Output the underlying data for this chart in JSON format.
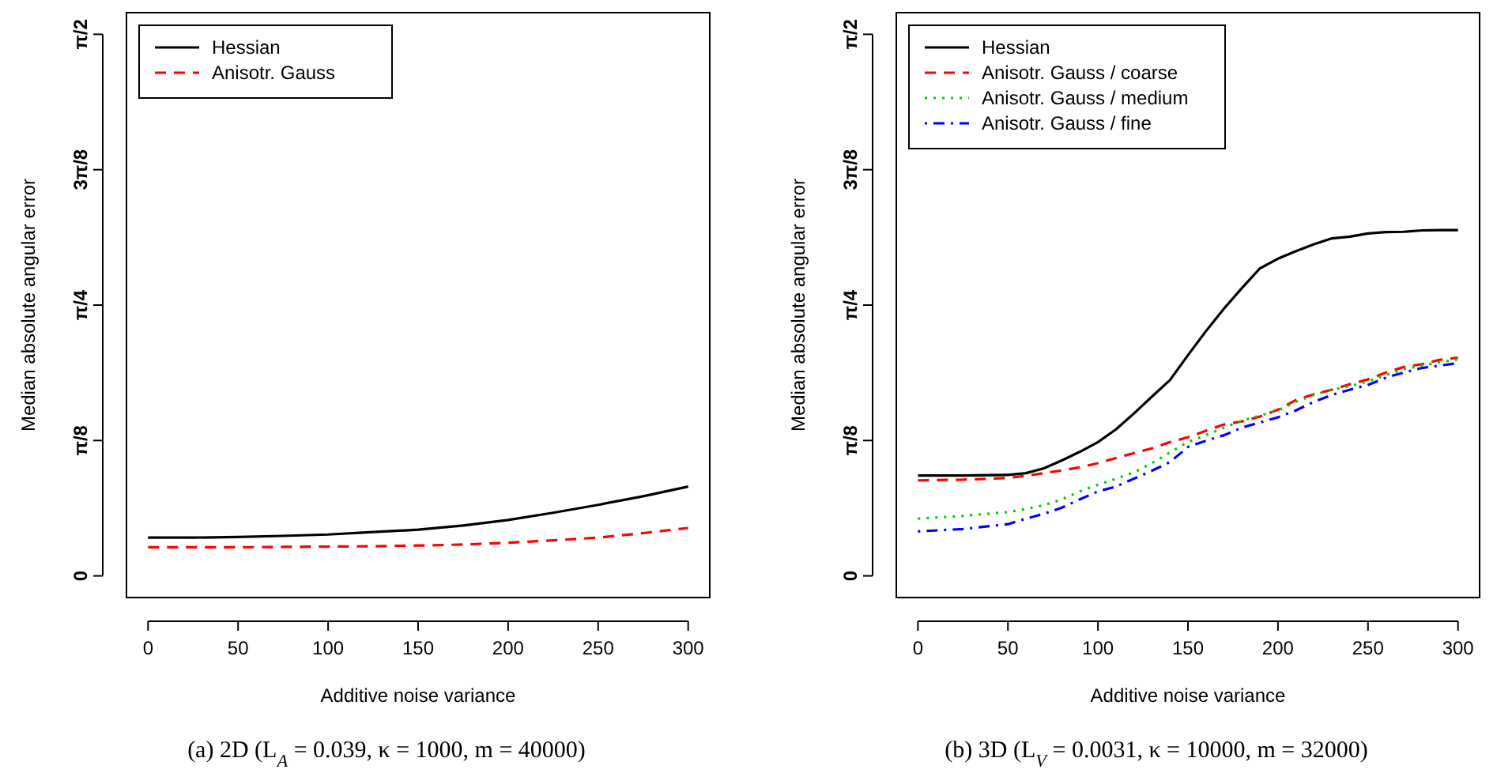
{
  "chart_data": [
    {
      "type": "line",
      "xlabel": "Additive noise variance",
      "ylabel": "Median absolute angular error",
      "annotations": [
        "(a) 2D (L$_{A}$ = 0.039, κ = 1000, m = 40000)"
      ],
      "x": [
        0,
        25,
        50,
        75,
        100,
        125,
        150,
        175,
        200,
        225,
        250,
        275,
        300
      ],
      "xlim": [
        -12,
        312
      ],
      "ylim": [
        -0.0628,
        1.6336
      ],
      "xticks": [
        0,
        50,
        100,
        150,
        200,
        250,
        300
      ],
      "yticks": [
        {
          "value": 0,
          "label": "0"
        },
        {
          "value": 0.3927,
          "label": "π/8"
        },
        {
          "value": 0.7854,
          "label": "π/4"
        },
        {
          "value": 1.1781,
          "label": "3π/8"
        },
        {
          "value": 1.5708,
          "label": "π/2"
        }
      ],
      "grid": false,
      "legend": "top left",
      "marker": "none",
      "series": [
        {
          "name": "Hessian",
          "color": "#000000",
          "line_style": "solid",
          "values": [
            0.111,
            0.111,
            0.113,
            0.116,
            0.12,
            0.127,
            0.134,
            0.146,
            0.162,
            0.183,
            0.206,
            0.231,
            0.259
          ]
        },
        {
          "name": "Anisotr. Gauss",
          "color": "#ff0000",
          "line_style": "dashed",
          "values": [
            0.083,
            0.083,
            0.083,
            0.084,
            0.085,
            0.086,
            0.088,
            0.091,
            0.096,
            0.103,
            0.111,
            0.124,
            0.139
          ]
        }
      ]
    },
    {
      "type": "line",
      "xlabel": "Additive noise variance",
      "ylabel": "Median absolute angular error",
      "annotations": [
        "(b) 3D (L$_{V}$ = 0.0031, κ = 10000, m = 32000)"
      ],
      "x": [
        0,
        25,
        50,
        60,
        70,
        80,
        90,
        100,
        110,
        120,
        130,
        140,
        150,
        160,
        170,
        180,
        190,
        200,
        210,
        220,
        230,
        240,
        250,
        260,
        270,
        280,
        290,
        300
      ],
      "xlim": [
        -12,
        312
      ],
      "ylim": [
        -0.0628,
        1.6336
      ],
      "xticks": [
        0,
        50,
        100,
        150,
        200,
        250,
        300
      ],
      "yticks": [
        {
          "value": 0,
          "label": "0"
        },
        {
          "value": 0.3927,
          "label": "π/8"
        },
        {
          "value": 0.7854,
          "label": "π/4"
        },
        {
          "value": 1.1781,
          "label": "3π/8"
        },
        {
          "value": 1.5708,
          "label": "π/2"
        }
      ],
      "grid": false,
      "legend": "top left",
      "marker": "none",
      "series": [
        {
          "name": "Hessian",
          "color": "#000000",
          "line_style": "solid",
          "values": [
            0.291,
            0.291,
            0.293,
            0.298,
            0.312,
            0.335,
            0.36,
            0.388,
            0.425,
            0.471,
            0.52,
            0.568,
            0.64,
            0.71,
            0.775,
            0.835,
            0.892,
            0.92,
            0.942,
            0.962,
            0.979,
            0.984,
            0.993,
            0.997,
            0.998,
            1.002,
            1.003,
            1.003
          ]
        },
        {
          "name": "Anisotr. Gauss / coarse",
          "color": "#ff0000",
          "line_style": "dashed",
          "values": [
            0.277,
            0.279,
            0.284,
            0.29,
            0.298,
            0.306,
            0.315,
            0.327,
            0.342,
            0.356,
            0.37,
            0.388,
            0.402,
            0.421,
            0.439,
            0.448,
            0.462,
            0.482,
            0.51,
            0.527,
            0.54,
            0.556,
            0.57,
            0.59,
            0.606,
            0.614,
            0.627,
            0.633
          ]
        },
        {
          "name": "Anisotr. Gauss / medium",
          "color": "#00cd00",
          "line_style": "dotted",
          "values": [
            0.166,
            0.174,
            0.185,
            0.194,
            0.205,
            0.222,
            0.245,
            0.264,
            0.282,
            0.3,
            0.327,
            0.358,
            0.388,
            0.408,
            0.43,
            0.45,
            0.465,
            0.48,
            0.505,
            0.525,
            0.54,
            0.55,
            0.564,
            0.583,
            0.6,
            0.61,
            0.62,
            0.628
          ]
        },
        {
          "name": "Anisotr. Gauss / fine",
          "color": "#0000ff",
          "line_style": "dashdot",
          "values": [
            0.129,
            0.136,
            0.15,
            0.166,
            0.18,
            0.198,
            0.222,
            0.245,
            0.259,
            0.282,
            0.305,
            0.33,
            0.374,
            0.392,
            0.408,
            0.43,
            0.445,
            0.46,
            0.48,
            0.505,
            0.525,
            0.54,
            0.554,
            0.575,
            0.59,
            0.603,
            0.61,
            0.617
          ]
        }
      ]
    }
  ]
}
